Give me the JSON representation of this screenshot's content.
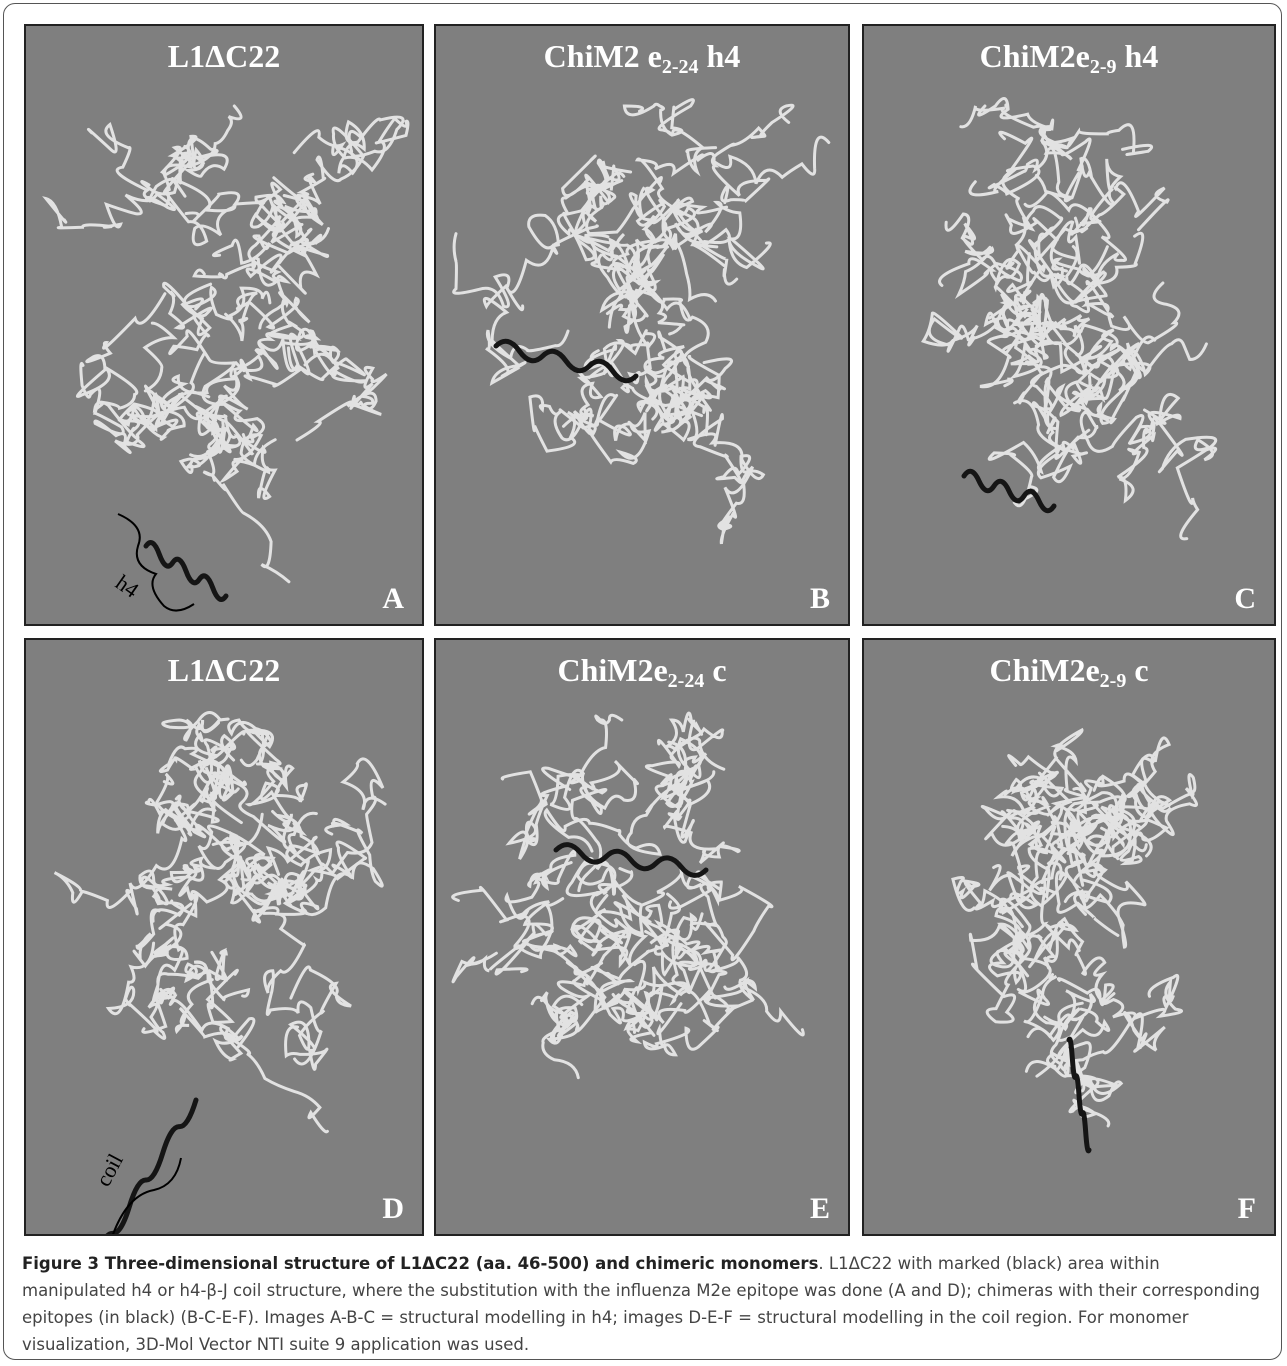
{
  "panels": [
    {
      "title": {
        "main": "L1ΔC22"
      },
      "letter": "A",
      "annotation": "h4"
    },
    {
      "title": {
        "main": "ChiM2 e",
        "sub": "2-24",
        "suffix": " h4"
      },
      "letter": "B"
    },
    {
      "title": {
        "main": "ChiM2e",
        "sub": "2-9",
        "suffix": " h4"
      },
      "letter": "C"
    },
    {
      "title": {
        "main": "L1ΔC22"
      },
      "letter": "D",
      "annotation": "coil"
    },
    {
      "title": {
        "main": "ChiM2e",
        "sub": "2-24",
        "suffix": " c"
      },
      "letter": "E"
    },
    {
      "title": {
        "main": "ChiM2e",
        "sub": "2-9",
        "suffix": " c"
      },
      "letter": "F"
    }
  ],
  "caption": {
    "bold": "Figure 3 Three-dimensional structure of L1ΔC22 (aa. 46-500) and chimeric monomers",
    "text": ". L1ΔC22 with marked (black) area within manipulated h4 or h4-β-J coil structure, where the substitution with the influenza M2e epitope was done (A and D); chimeras with their corresponding epitopes (in black) (B-C-E-F). Images A-B-C = structural modelling in h4; images D-E-F = structural modelling in the coil region. For monomer visualization, 3D-Mol Vector NTI suite 9 application was used."
  }
}
